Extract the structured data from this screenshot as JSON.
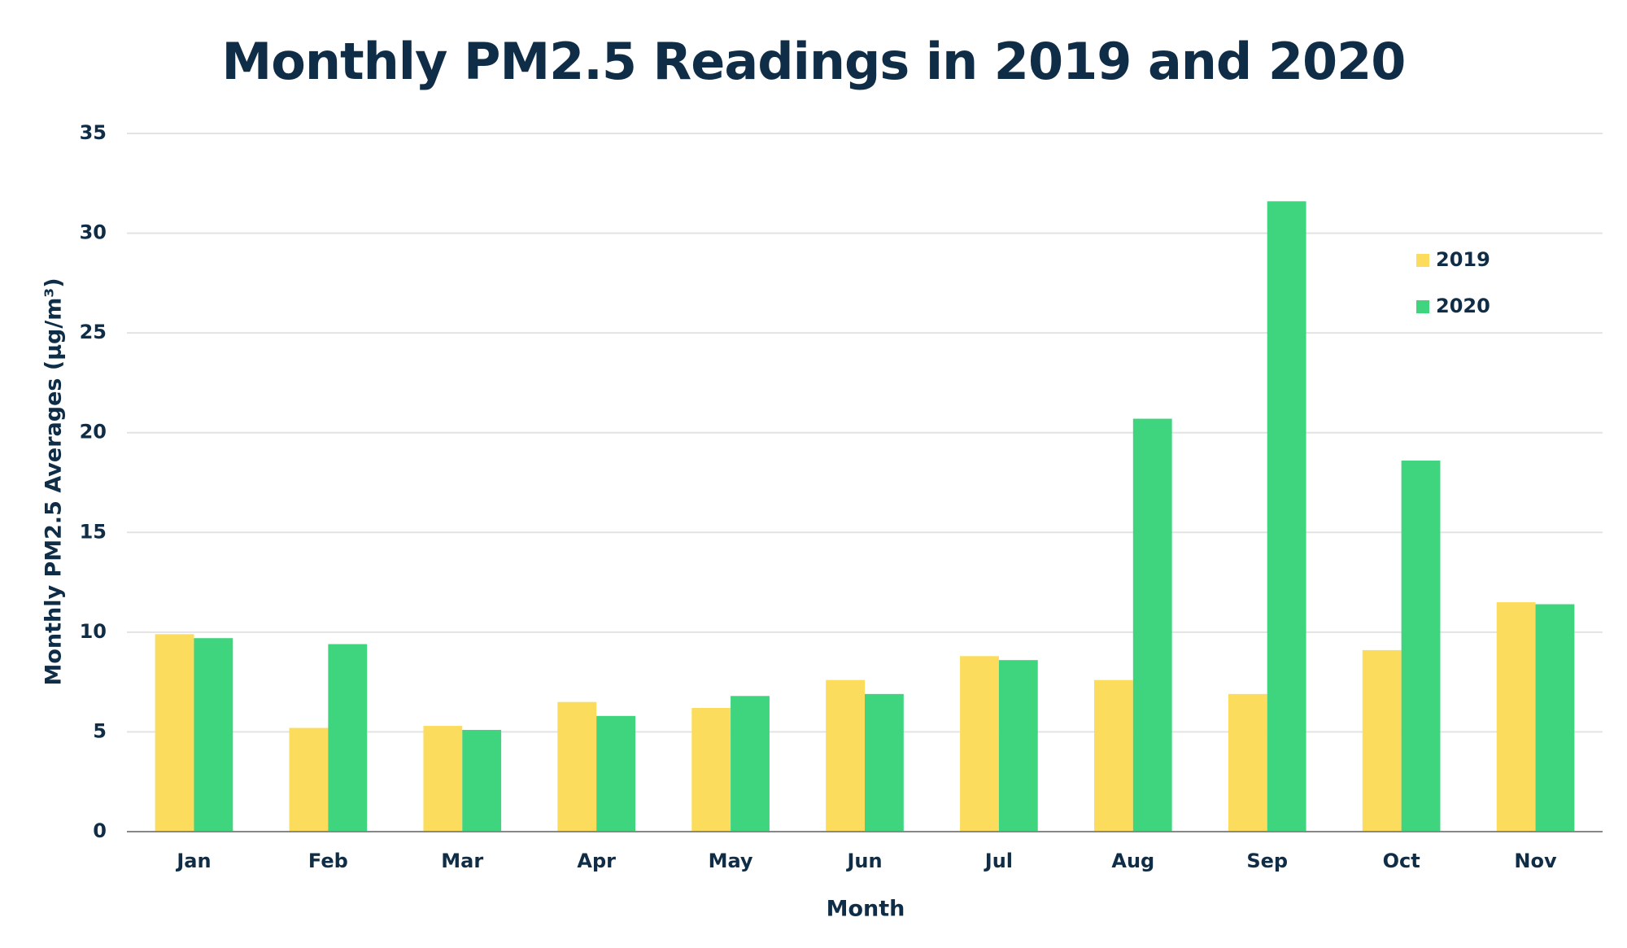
{
  "chart_data": {
    "type": "bar",
    "title": "Monthly PM2.5 Readings in 2019 and 2020",
    "xlabel": "Month",
    "ylabel": "Monthly PM2.5 Averages (µg/m³)",
    "categories": [
      "Jan",
      "Feb",
      "Mar",
      "Apr",
      "May",
      "Jun",
      "Jul",
      "Aug",
      "Sep",
      "Oct",
      "Nov"
    ],
    "series": [
      {
        "name": "2019",
        "color": "#fcdc5c",
        "values": [
          9.9,
          5.2,
          5.3,
          6.5,
          6.2,
          7.6,
          8.8,
          7.6,
          6.9,
          9.1,
          11.5
        ]
      },
      {
        "name": "2020",
        "color": "#3fd47e",
        "values": [
          9.7,
          9.4,
          5.1,
          5.8,
          6.8,
          6.9,
          8.6,
          20.7,
          31.6,
          18.6,
          11.4
        ]
      }
    ],
    "ylim": [
      0,
      35
    ],
    "yticks": [
      0,
      5,
      10,
      15,
      20,
      25,
      30,
      35
    ],
    "grid": true,
    "legend": "upper right"
  }
}
